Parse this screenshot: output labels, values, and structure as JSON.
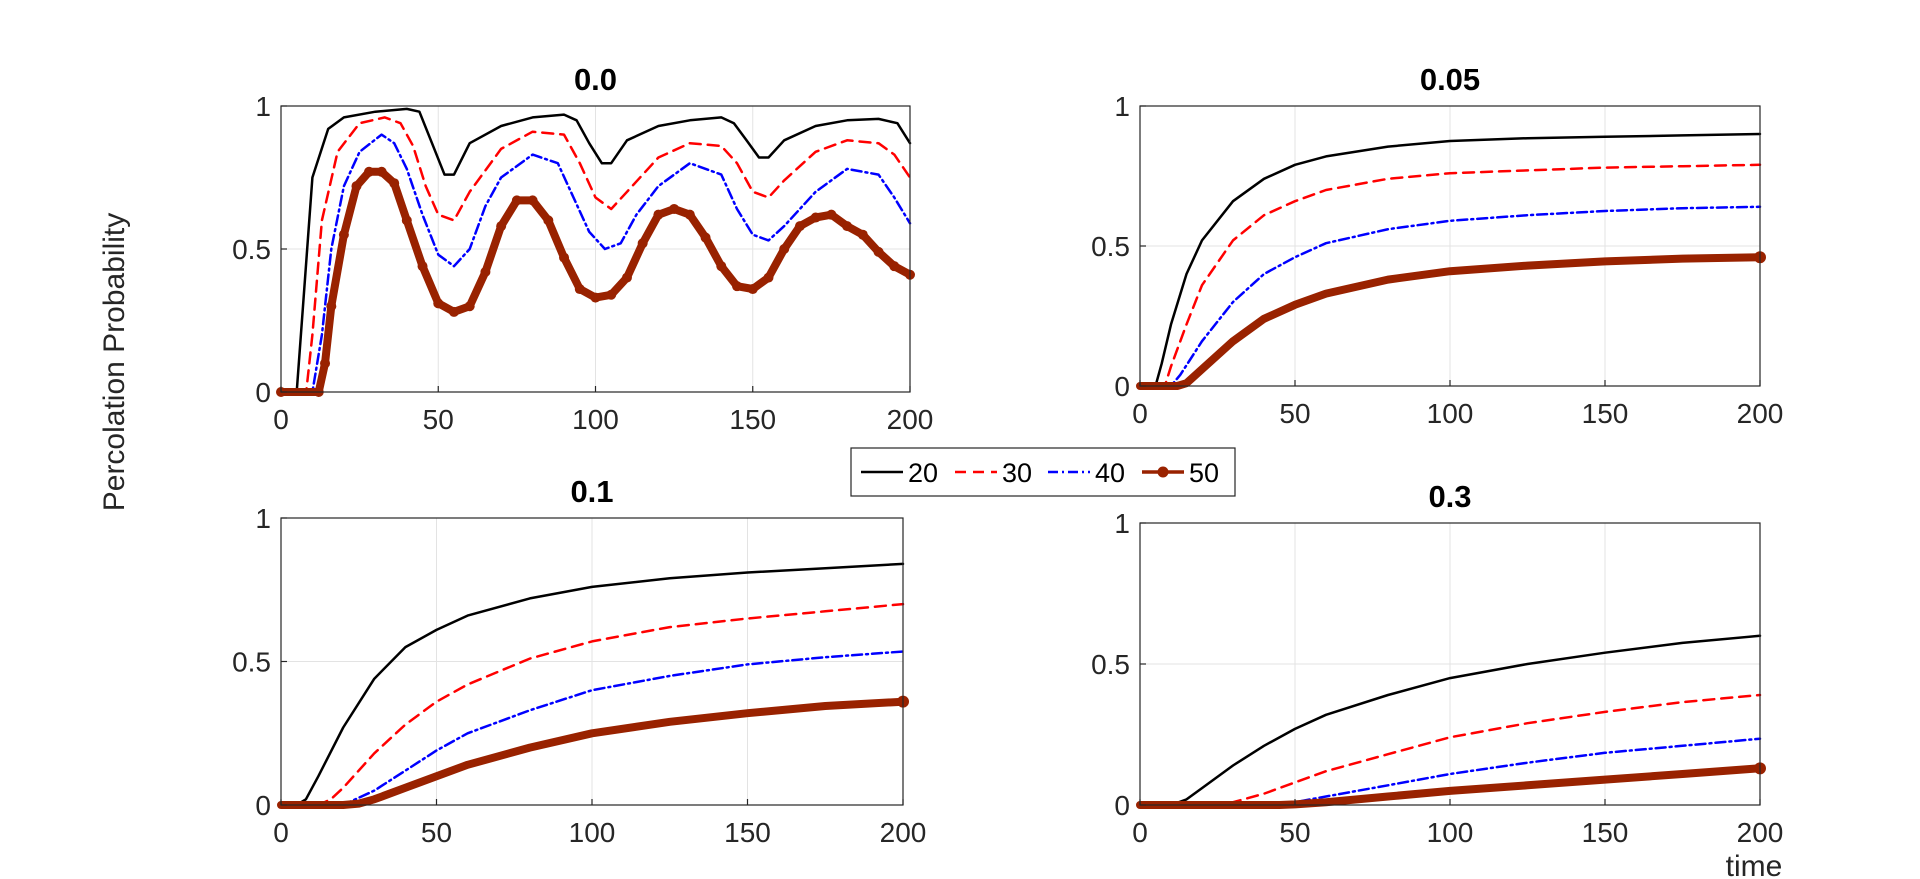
{
  "figure": {
    "ylabel": "Percolation Probability",
    "xlabel": "time"
  },
  "legend": {
    "entries": [
      "20",
      "30",
      "40",
      "50"
    ]
  },
  "colors": {
    "s20": "#000000",
    "s30": "#ff0000",
    "s40": "#0000ff",
    "s50": "#992200"
  },
  "chart_data": [
    {
      "type": "line",
      "title": "0.0",
      "xlim": [
        0,
        200
      ],
      "ylim": [
        0,
        1
      ],
      "xticks": [
        0,
        50,
        100,
        150,
        200
      ],
      "yticks": [
        0,
        0.5,
        1
      ],
      "yticklabels": [
        "0",
        "0.5",
        "1"
      ],
      "grid": true,
      "series": [
        {
          "name": "20",
          "x": [
            0,
            5,
            7,
            10,
            15,
            20,
            30,
            40,
            44,
            48,
            52,
            55,
            60,
            70,
            80,
            90,
            94,
            98,
            102,
            105,
            110,
            120,
            130,
            140,
            144,
            148,
            152,
            155,
            160,
            170,
            180,
            190,
            196,
            200
          ],
          "values": [
            0,
            0,
            0.3,
            0.75,
            0.92,
            0.96,
            0.98,
            0.99,
            0.98,
            0.87,
            0.76,
            0.76,
            0.87,
            0.93,
            0.96,
            0.97,
            0.95,
            0.87,
            0.8,
            0.8,
            0.88,
            0.93,
            0.95,
            0.96,
            0.94,
            0.88,
            0.82,
            0.82,
            0.88,
            0.93,
            0.95,
            0.955,
            0.94,
            0.87
          ]
        },
        {
          "name": "30",
          "x": [
            0,
            8,
            10,
            13,
            18,
            25,
            33,
            38,
            42,
            46,
            50,
            55,
            60,
            70,
            80,
            90,
            95,
            100,
            105,
            110,
            120,
            130,
            140,
            145,
            150,
            155,
            160,
            170,
            180,
            190,
            195,
            200
          ],
          "values": [
            0,
            0,
            0.2,
            0.6,
            0.84,
            0.94,
            0.96,
            0.94,
            0.86,
            0.72,
            0.62,
            0.6,
            0.7,
            0.85,
            0.91,
            0.9,
            0.8,
            0.68,
            0.64,
            0.7,
            0.82,
            0.87,
            0.86,
            0.8,
            0.7,
            0.68,
            0.74,
            0.84,
            0.88,
            0.87,
            0.83,
            0.75
          ]
        },
        {
          "name": "40",
          "x": [
            0,
            10,
            13,
            16,
            20,
            25,
            32,
            36,
            40,
            45,
            50,
            55,
            60,
            65,
            70,
            80,
            88,
            93,
            98,
            103,
            108,
            113,
            120,
            130,
            140,
            145,
            150,
            155,
            160,
            170,
            180,
            190,
            195,
            200
          ],
          "values": [
            0,
            0,
            0.2,
            0.5,
            0.72,
            0.84,
            0.9,
            0.87,
            0.78,
            0.62,
            0.48,
            0.44,
            0.5,
            0.65,
            0.75,
            0.83,
            0.8,
            0.68,
            0.56,
            0.5,
            0.52,
            0.62,
            0.72,
            0.8,
            0.76,
            0.64,
            0.55,
            0.53,
            0.58,
            0.7,
            0.78,
            0.76,
            0.68,
            0.59
          ]
        },
        {
          "name": "50",
          "x": [
            0,
            12,
            14,
            16,
            20,
            24,
            28,
            32,
            36,
            40,
            45,
            50,
            55,
            60,
            65,
            70,
            75,
            80,
            85,
            90,
            95,
            100,
            105,
            110,
            115,
            120,
            125,
            130,
            135,
            140,
            145,
            150,
            155,
            160,
            165,
            170,
            175,
            180,
            185,
            190,
            195,
            200
          ],
          "values": [
            0,
            0,
            0.1,
            0.3,
            0.55,
            0.72,
            0.77,
            0.77,
            0.73,
            0.6,
            0.44,
            0.31,
            0.28,
            0.3,
            0.42,
            0.58,
            0.67,
            0.67,
            0.6,
            0.47,
            0.36,
            0.33,
            0.34,
            0.4,
            0.52,
            0.62,
            0.64,
            0.62,
            0.54,
            0.44,
            0.37,
            0.36,
            0.4,
            0.5,
            0.58,
            0.61,
            0.62,
            0.58,
            0.55,
            0.49,
            0.44,
            0.41
          ]
        }
      ]
    },
    {
      "type": "line",
      "title": "0.05",
      "xlim": [
        0,
        200
      ],
      "ylim": [
        0,
        1
      ],
      "xticks": [
        0,
        50,
        100,
        150,
        200
      ],
      "yticks": [
        0,
        0.5,
        1
      ],
      "yticklabels": [
        "0",
        "0.5",
        "1"
      ],
      "grid": true,
      "series": [
        {
          "name": "20",
          "x": [
            0,
            5,
            7,
            10,
            15,
            20,
            30,
            40,
            50,
            60,
            80,
            100,
            125,
            150,
            175,
            200
          ],
          "values": [
            0,
            0,
            0.08,
            0.22,
            0.4,
            0.52,
            0.66,
            0.74,
            0.79,
            0.82,
            0.855,
            0.875,
            0.885,
            0.89,
            0.895,
            0.9
          ]
        },
        {
          "name": "30",
          "x": [
            0,
            8,
            10,
            15,
            20,
            30,
            40,
            50,
            60,
            80,
            100,
            125,
            150,
            175,
            200
          ],
          "values": [
            0,
            0,
            0.07,
            0.22,
            0.36,
            0.52,
            0.61,
            0.66,
            0.7,
            0.74,
            0.76,
            0.77,
            0.78,
            0.785,
            0.79
          ]
        },
        {
          "name": "40",
          "x": [
            0,
            10,
            13,
            20,
            30,
            40,
            50,
            60,
            80,
            100,
            125,
            150,
            175,
            200
          ],
          "values": [
            0,
            0,
            0.04,
            0.16,
            0.3,
            0.4,
            0.46,
            0.51,
            0.56,
            0.59,
            0.61,
            0.625,
            0.635,
            0.64
          ]
        },
        {
          "name": "50",
          "x": [
            0,
            12,
            15,
            20,
            30,
            40,
            50,
            60,
            80,
            100,
            125,
            150,
            175,
            200
          ],
          "values": [
            0,
            0,
            0.01,
            0.06,
            0.16,
            0.24,
            0.29,
            0.33,
            0.38,
            0.41,
            0.43,
            0.445,
            0.455,
            0.46
          ]
        }
      ]
    },
    {
      "type": "line",
      "title": "0.1",
      "xlim": [
        0,
        200
      ],
      "ylim": [
        0,
        1
      ],
      "xticks": [
        0,
        50,
        100,
        150,
        200
      ],
      "yticks": [
        0,
        0.5,
        1
      ],
      "yticklabels": [
        "0",
        "0.5",
        "1"
      ],
      "grid": true,
      "series": [
        {
          "name": "20",
          "x": [
            0,
            5,
            8,
            12,
            20,
            30,
            40,
            50,
            60,
            80,
            100,
            125,
            150,
            175,
            200
          ],
          "values": [
            0,
            0,
            0.02,
            0.1,
            0.27,
            0.44,
            0.55,
            0.61,
            0.66,
            0.72,
            0.76,
            0.79,
            0.81,
            0.825,
            0.84
          ]
        },
        {
          "name": "30",
          "x": [
            0,
            12,
            16,
            20,
            30,
            40,
            50,
            60,
            80,
            100,
            125,
            150,
            175,
            200
          ],
          "values": [
            0,
            0,
            0.02,
            0.06,
            0.18,
            0.28,
            0.36,
            0.42,
            0.51,
            0.57,
            0.62,
            0.65,
            0.675,
            0.7
          ]
        },
        {
          "name": "40",
          "x": [
            0,
            18,
            22,
            30,
            40,
            50,
            60,
            80,
            100,
            125,
            150,
            175,
            200
          ],
          "values": [
            0,
            0,
            0.01,
            0.05,
            0.12,
            0.19,
            0.25,
            0.33,
            0.4,
            0.45,
            0.49,
            0.515,
            0.535
          ]
        },
        {
          "name": "50",
          "x": [
            0,
            20,
            25,
            30,
            40,
            50,
            60,
            80,
            100,
            125,
            150,
            175,
            200
          ],
          "values": [
            0,
            0,
            0.005,
            0.02,
            0.06,
            0.1,
            0.14,
            0.2,
            0.25,
            0.29,
            0.32,
            0.345,
            0.36
          ]
        }
      ]
    },
    {
      "type": "line",
      "title": "0.3",
      "xlim": [
        0,
        200
      ],
      "ylim": [
        0,
        1
      ],
      "xticks": [
        0,
        50,
        100,
        150,
        200
      ],
      "yticks": [
        0,
        0.5,
        1
      ],
      "yticklabels": [
        "0",
        "0.5",
        "1"
      ],
      "grid": true,
      "series": [
        {
          "name": "20",
          "x": [
            0,
            10,
            15,
            20,
            30,
            40,
            50,
            60,
            80,
            100,
            125,
            150,
            175,
            200
          ],
          "values": [
            0,
            0,
            0.02,
            0.06,
            0.14,
            0.21,
            0.27,
            0.32,
            0.39,
            0.45,
            0.5,
            0.54,
            0.575,
            0.6
          ]
        },
        {
          "name": "30",
          "x": [
            0,
            25,
            30,
            40,
            50,
            60,
            80,
            100,
            125,
            150,
            175,
            200
          ],
          "values": [
            0,
            0,
            0.01,
            0.04,
            0.08,
            0.12,
            0.18,
            0.24,
            0.29,
            0.33,
            0.365,
            0.39
          ]
        },
        {
          "name": "40",
          "x": [
            0,
            40,
            50,
            60,
            80,
            100,
            125,
            150,
            175,
            200
          ],
          "values": [
            0,
            0,
            0.01,
            0.03,
            0.07,
            0.11,
            0.15,
            0.185,
            0.21,
            0.235
          ]
        },
        {
          "name": "50",
          "x": [
            0,
            45,
            50,
            60,
            80,
            100,
            125,
            150,
            175,
            200
          ],
          "values": [
            0,
            0,
            0.002,
            0.01,
            0.03,
            0.05,
            0.07,
            0.09,
            0.11,
            0.13
          ]
        }
      ]
    }
  ]
}
